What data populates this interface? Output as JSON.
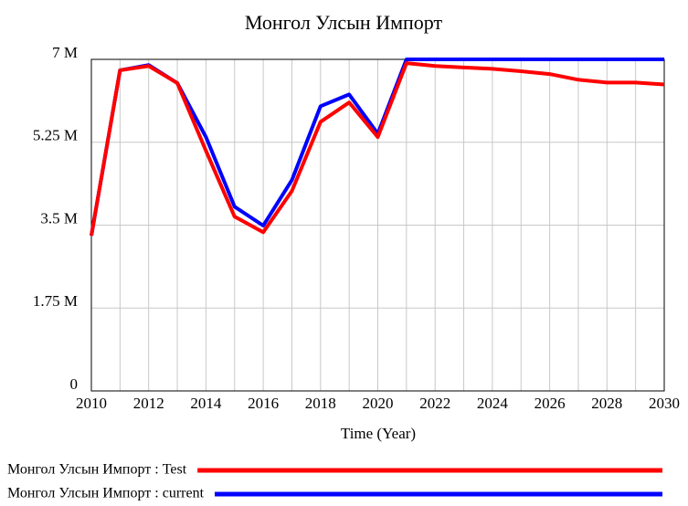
{
  "chart_data": {
    "type": "line",
    "title": "Монгол Улсын Импорт",
    "xlabel": "Time (Year)",
    "x": [
      2010,
      2011,
      2012,
      2013,
      2014,
      2015,
      2016,
      2017,
      2018,
      2019,
      2020,
      2021,
      2022,
      2023,
      2024,
      2025,
      2026,
      2027,
      2028,
      2029,
      2030
    ],
    "series": [
      {
        "name": "Монгол Улсын Импорт : current",
        "color": "#0000ff",
        "values": [
          3280000,
          6770000,
          6880000,
          6500000,
          5360000,
          3890000,
          3490000,
          4450000,
          6010000,
          6260000,
          5430000,
          7000000,
          7000000,
          7000000,
          7000000,
          7000000,
          7000000,
          7000000,
          7000000,
          7000000,
          7000000
        ]
      },
      {
        "name": "Монгол Улсын Импорт : Test",
        "color": "#ff0000",
        "values": [
          3280000,
          6770000,
          6860000,
          6500000,
          5070000,
          3680000,
          3350000,
          4220000,
          5680000,
          6090000,
          5360000,
          6920000,
          6860000,
          6830000,
          6800000,
          6750000,
          6690000,
          6570000,
          6510000,
          6510000,
          6470000
        ]
      }
    ],
    "xlim": [
      2010,
      2030
    ],
    "xticks": [
      2010,
      2012,
      2014,
      2016,
      2018,
      2020,
      2022,
      2024,
      2026,
      2028,
      2030
    ],
    "xgrid": [
      2011,
      2013,
      2015,
      2017,
      2019,
      2021,
      2023,
      2025,
      2027,
      2029
    ],
    "ylim": [
      0,
      7000000
    ],
    "yticks": [
      0,
      {
        "value": 1750000,
        "label": "1.75 M"
      },
      {
        "value": 3500000,
        "label": "3.5 M"
      },
      {
        "value": 5250000,
        "label": "5.25 M"
      },
      {
        "value": 7000000,
        "label": "7 M"
      }
    ],
    "grid": true
  }
}
